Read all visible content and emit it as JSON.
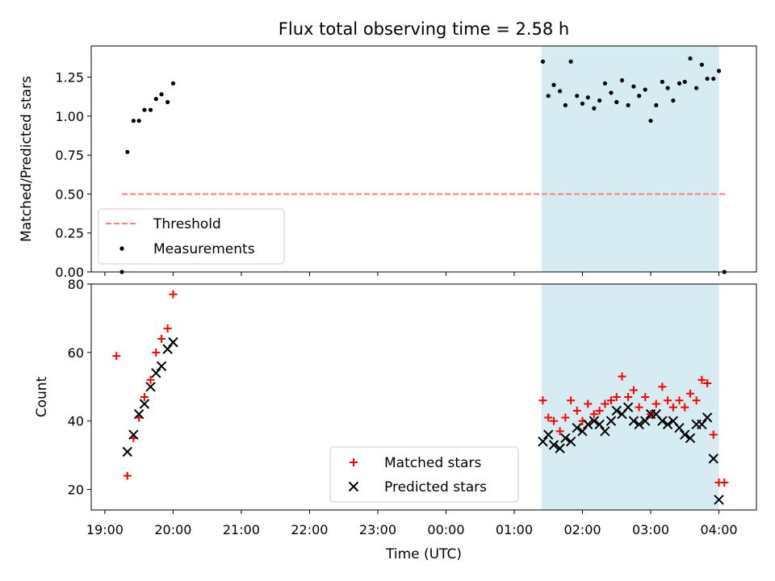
{
  "chart_data": [
    {
      "type": "scatter",
      "title": "Flux total observing time = 2.58 h",
      "ylabel": "Matched/Predicted stars",
      "xlabel": "",
      "ylim": [
        0,
        1.45
      ],
      "xlim": [
        -0.2,
        9.55
      ],
      "x_unit": "hours since 19:00 UTC",
      "yticks": [
        0.0,
        0.25,
        0.5,
        0.75,
        1.0,
        1.25
      ],
      "ytick_labels": [
        "0.00",
        "0.25",
        "0.50",
        "0.75",
        "1.00",
        "1.25"
      ],
      "grid": false,
      "legend_position": "lower-left",
      "shaded_region": {
        "x0": 6.4,
        "x1": 9.0,
        "color": "#add8e6"
      },
      "series": [
        {
          "name": "Threshold",
          "style": "dashed-line",
          "color": "#ff7f7f",
          "x": [
            0.25,
            9.1
          ],
          "y": [
            0.5,
            0.5
          ]
        },
        {
          "name": "Measurements",
          "style": "dot",
          "color": "#000000",
          "points": [
            [
              0.25,
              0.0
            ],
            [
              0.33,
              0.77
            ],
            [
              0.42,
              0.97
            ],
            [
              0.5,
              0.97
            ],
            [
              0.58,
              1.04
            ],
            [
              0.67,
              1.04
            ],
            [
              0.75,
              1.11
            ],
            [
              0.83,
              1.14
            ],
            [
              0.92,
              1.09
            ],
            [
              1.0,
              1.21
            ],
            [
              6.42,
              1.35
            ],
            [
              6.5,
              1.13
            ],
            [
              6.58,
              1.2
            ],
            [
              6.67,
              1.16
            ],
            [
              6.75,
              1.07
            ],
            [
              6.83,
              1.35
            ],
            [
              6.92,
              1.13
            ],
            [
              7.0,
              1.08
            ],
            [
              7.08,
              1.12
            ],
            [
              7.17,
              1.05
            ],
            [
              7.25,
              1.1
            ],
            [
              7.33,
              1.21
            ],
            [
              7.42,
              1.15
            ],
            [
              7.5,
              1.09
            ],
            [
              7.58,
              1.23
            ],
            [
              7.67,
              1.07
            ],
            [
              7.75,
              1.19
            ],
            [
              7.83,
              1.13
            ],
            [
              7.92,
              1.17
            ],
            [
              8.0,
              0.97
            ],
            [
              8.08,
              1.07
            ],
            [
              8.17,
              1.22
            ],
            [
              8.25,
              1.18
            ],
            [
              8.33,
              1.1
            ],
            [
              8.42,
              1.21
            ],
            [
              8.5,
              1.22
            ],
            [
              8.58,
              1.37
            ],
            [
              8.67,
              1.18
            ],
            [
              8.75,
              1.33
            ],
            [
              8.83,
              1.24
            ],
            [
              8.92,
              1.24
            ],
            [
              9.0,
              1.29
            ],
            [
              9.08,
              0.0
            ]
          ]
        }
      ]
    },
    {
      "type": "scatter",
      "title": "",
      "ylabel": "Count",
      "xlabel": "Time (UTC)",
      "ylim": [
        14,
        80
      ],
      "xlim": [
        -0.2,
        9.55
      ],
      "x_unit": "hours since 19:00 UTC",
      "yticks": [
        20,
        40,
        60,
        80
      ],
      "ytick_labels": [
        "20",
        "40",
        "60",
        "80"
      ],
      "xticks": [
        0,
        1,
        2,
        3,
        4,
        5,
        6,
        7,
        8,
        9
      ],
      "xtick_labels": [
        "19:00",
        "20:00",
        "21:00",
        "22:00",
        "23:00",
        "00:00",
        "01:00",
        "02:00",
        "03:00",
        "04:00"
      ],
      "grid": false,
      "legend_position": "lower-center",
      "shaded_region": {
        "x0": 6.4,
        "x1": 9.0,
        "color": "#add8e6"
      },
      "series": [
        {
          "name": "Matched stars",
          "style": "plus",
          "color": "#ff0000",
          "points": [
            [
              0.17,
              59
            ],
            [
              0.33,
              24
            ],
            [
              0.42,
              35
            ],
            [
              0.5,
              41
            ],
            [
              0.58,
              47
            ],
            [
              0.67,
              52
            ],
            [
              0.75,
              60
            ],
            [
              0.83,
              64
            ],
            [
              0.92,
              67
            ],
            [
              1.0,
              77
            ],
            [
              6.42,
              46
            ],
            [
              6.5,
              41
            ],
            [
              6.58,
              40
            ],
            [
              6.67,
              37
            ],
            [
              6.75,
              41
            ],
            [
              6.83,
              46
            ],
            [
              6.92,
              43
            ],
            [
              7.0,
              40
            ],
            [
              7.08,
              45
            ],
            [
              7.17,
              42
            ],
            [
              7.25,
              43
            ],
            [
              7.33,
              45
            ],
            [
              7.42,
              46
            ],
            [
              7.5,
              47
            ],
            [
              7.58,
              53
            ],
            [
              7.67,
              47
            ],
            [
              7.75,
              49
            ],
            [
              7.83,
              44
            ],
            [
              7.92,
              47
            ],
            [
              8.0,
              42
            ],
            [
              8.08,
              45
            ],
            [
              8.17,
              50
            ],
            [
              8.25,
              46
            ],
            [
              8.33,
              44
            ],
            [
              8.42,
              46
            ],
            [
              8.5,
              44
            ],
            [
              8.58,
              48
            ],
            [
              8.67,
              46
            ],
            [
              8.75,
              52
            ],
            [
              8.83,
              51
            ],
            [
              8.92,
              36
            ],
            [
              9.0,
              22
            ],
            [
              9.08,
              22
            ]
          ]
        },
        {
          "name": "Predicted stars",
          "style": "x",
          "color": "#000000",
          "points": [
            [
              0.33,
              31
            ],
            [
              0.42,
              36
            ],
            [
              0.5,
              42
            ],
            [
              0.58,
              45
            ],
            [
              0.67,
              50
            ],
            [
              0.75,
              54
            ],
            [
              0.83,
              56
            ],
            [
              0.92,
              61
            ],
            [
              1.0,
              63
            ],
            [
              6.42,
              34
            ],
            [
              6.5,
              36
            ],
            [
              6.58,
              33
            ],
            [
              6.67,
              32
            ],
            [
              6.75,
              35
            ],
            [
              6.83,
              34
            ],
            [
              6.92,
              38
            ],
            [
              7.0,
              37
            ],
            [
              7.08,
              39
            ],
            [
              7.17,
              40
            ],
            [
              7.25,
              39
            ],
            [
              7.33,
              37
            ],
            [
              7.42,
              40
            ],
            [
              7.5,
              43
            ],
            [
              7.58,
              42
            ],
            [
              7.67,
              44
            ],
            [
              7.75,
              40
            ],
            [
              7.83,
              39
            ],
            [
              7.92,
              40
            ],
            [
              8.0,
              42
            ],
            [
              8.08,
              42
            ],
            [
              8.17,
              40
            ],
            [
              8.25,
              39
            ],
            [
              8.33,
              40
            ],
            [
              8.42,
              38
            ],
            [
              8.5,
              36
            ],
            [
              8.58,
              35
            ],
            [
              8.67,
              39
            ],
            [
              8.75,
              39
            ],
            [
              8.83,
              41
            ],
            [
              8.92,
              29
            ],
            [
              9.0,
              17
            ]
          ]
        }
      ]
    }
  ]
}
